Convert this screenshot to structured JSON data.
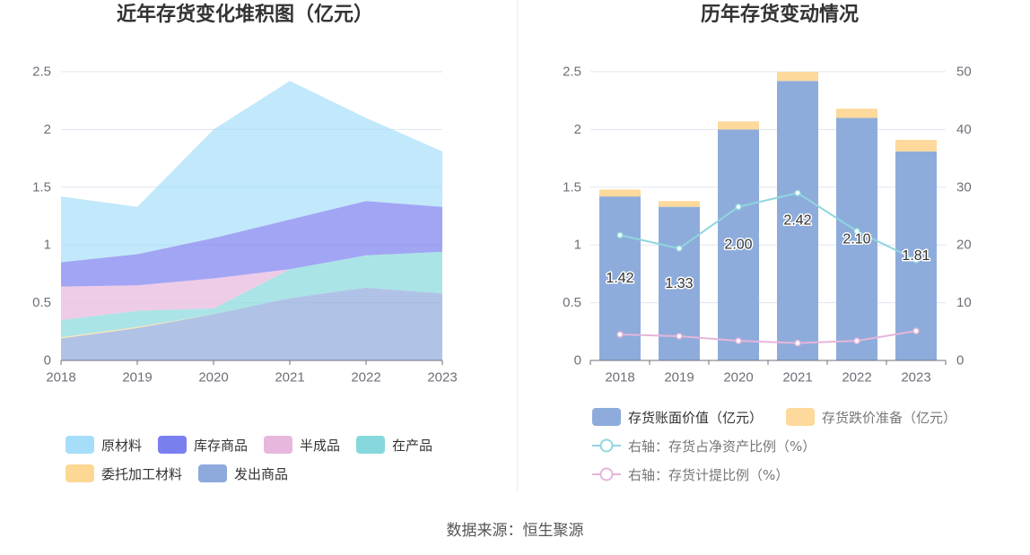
{
  "chart_data": [
    {
      "type": "area",
      "stacked": true,
      "title": "近年存货变化堆积图（亿元）",
      "categories": [
        "2018",
        "2019",
        "2020",
        "2021",
        "2022",
        "2023"
      ],
      "ylim": [
        0,
        2.5
      ],
      "yticks": [
        "0",
        "0.5",
        "1",
        "1.5",
        "2",
        "2.5"
      ],
      "grid": true,
      "legend": "bottom-left",
      "series": [
        {
          "name": "原材料",
          "color": "#a6defa",
          "values": [
            0.57,
            0.41,
            0.94,
            1.2,
            0.72,
            0.48
          ]
        },
        {
          "name": "库存商品",
          "color": "#7a7ff0",
          "values": [
            0.21,
            0.27,
            0.35,
            0.43,
            0.47,
            0.39
          ]
        },
        {
          "name": "半成品",
          "color": "#e7b7dd",
          "values": [
            0.29,
            0.22,
            0.26,
            0,
            0,
            0
          ]
        },
        {
          "name": "在产品",
          "color": "#86d8dc",
          "values": [
            0.15,
            0.14,
            0.05,
            0.25,
            0.28,
            0.36
          ]
        },
        {
          "name": "委托加工材料",
          "color": "#fdd894",
          "values": [
            0.01,
            0.01,
            0,
            0,
            0,
            0
          ]
        },
        {
          "name": "发出商品",
          "color": "#8ea9dc",
          "values": [
            0.19,
            0.28,
            0.4,
            0.54,
            0.63,
            0.58
          ]
        }
      ]
    },
    {
      "type": "bar",
      "stacked": true,
      "title": "历年存货变动情况",
      "categories": [
        "2018",
        "2019",
        "2020",
        "2021",
        "2022",
        "2023"
      ],
      "ylim": [
        0,
        2.5
      ],
      "yticks": [
        "0",
        "0.5",
        "1",
        "1.5",
        "2",
        "2.5"
      ],
      "y2lim": [
        0,
        50
      ],
      "y2ticks": [
        "0",
        "10",
        "20",
        "30",
        "40",
        "50"
      ],
      "grid": true,
      "legend": "bottom-left",
      "series": [
        {
          "name": "存货账面价值（亿元）",
          "type": "bar",
          "color": "#8eacdb",
          "values": [
            1.42,
            1.33,
            2.0,
            2.42,
            2.1,
            1.81
          ],
          "labels": [
            "1.42",
            "1.33",
            "2.00",
            "2.42",
            "2.10",
            "1.81"
          ]
        },
        {
          "name": "存货跌价准备（亿元）",
          "type": "bar",
          "color": "#fdd99b",
          "values": [
            0.06,
            0.05,
            0.07,
            0.08,
            0.08,
            0.1
          ]
        },
        {
          "name": "右轴：存货占净资产比例（%）",
          "type": "line",
          "right_axis": true,
          "color": "#8fd6df",
          "values": [
            21.7,
            19.4,
            26.6,
            29.0,
            22.4,
            17.4
          ]
        },
        {
          "name": "右轴：存货计提比例（%）",
          "type": "line",
          "right_axis": true,
          "color": "#e6b5da",
          "values": [
            4.5,
            4.2,
            3.4,
            3.0,
            3.4,
            5.1
          ]
        }
      ]
    }
  ],
  "footer": {
    "source": "数据来源：恒生聚源"
  }
}
